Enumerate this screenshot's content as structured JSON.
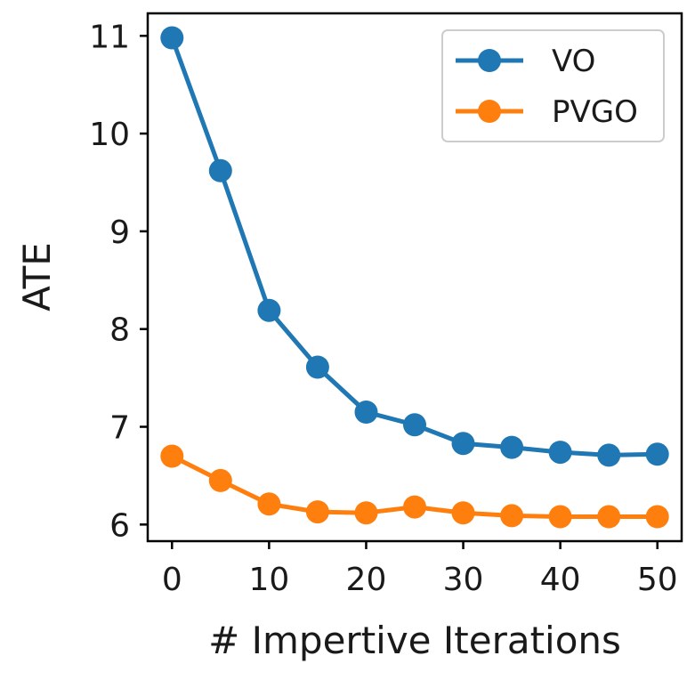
{
  "chart_data": {
    "type": "line",
    "title": "",
    "xlabel": "# Impertive Iterations",
    "ylabel": "ATE",
    "x": [
      0,
      5,
      10,
      15,
      20,
      25,
      30,
      35,
      40,
      45,
      50
    ],
    "xlim": [
      -2.5,
      52.5
    ],
    "ylim": [
      5.83,
      11.23
    ],
    "xticks": [
      0,
      10,
      20,
      30,
      40,
      50
    ],
    "yticks": [
      6,
      7,
      8,
      9,
      10,
      11
    ],
    "grid": false,
    "legend_position": "top-right",
    "series": [
      {
        "name": "VO",
        "color": "#1f77b4",
        "values": [
          10.98,
          9.62,
          8.19,
          7.61,
          7.15,
          7.02,
          6.83,
          6.79,
          6.74,
          6.71,
          6.72
        ]
      },
      {
        "name": "PVGO",
        "color": "#ff7f0e",
        "values": [
          6.7,
          6.45,
          6.21,
          6.13,
          6.12,
          6.18,
          6.12,
          6.09,
          6.08,
          6.08,
          6.08
        ]
      }
    ]
  }
}
